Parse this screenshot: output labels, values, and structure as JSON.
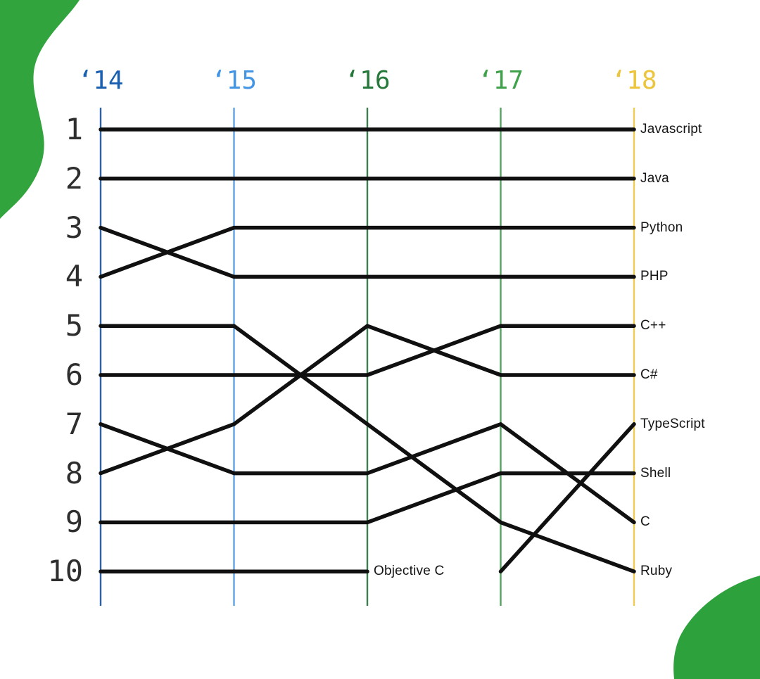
{
  "page": {
    "background_color": "#ffffff"
  },
  "decorations": {
    "top_left_blob_color": "#31a43d",
    "bottom_right_blob_color": "#2ca13c"
  },
  "chart_data": {
    "type": "line",
    "subtype": "bump-rank-chart",
    "title": "",
    "x_labels": [
      "‘14",
      "‘15",
      "‘16",
      "‘17",
      "‘18"
    ],
    "x_label_colors": [
      "#1a5fb0",
      "#4495e4",
      "#26793b",
      "#3fa24a",
      "#edc53d"
    ],
    "axis_line_colors": [
      "#2f62a1",
      "#5ea3e6",
      "#3c7e4f",
      "#53a361",
      "#eecb52"
    ],
    "rank_labels": [
      "1",
      "2",
      "3",
      "4",
      "5",
      "6",
      "7",
      "8",
      "9",
      "10"
    ],
    "rank_label_color": "#2e2e2e",
    "series_color": "#101010",
    "label_color": "#151515",
    "ylim": [
      1,
      10
    ],
    "grid": "vertical-year-lines",
    "legend_position": "labels-at-line-ends",
    "series": [
      {
        "name": "Javascript",
        "slug": "javascript",
        "ranks": [
          1,
          1,
          1,
          1,
          1
        ]
      },
      {
        "name": "Java",
        "slug": "java",
        "ranks": [
          2,
          2,
          2,
          2,
          2
        ]
      },
      {
        "name": "Python",
        "slug": "python",
        "ranks": [
          4,
          3,
          3,
          3,
          3
        ]
      },
      {
        "name": "PHP",
        "slug": "php",
        "ranks": [
          3,
          4,
          4,
          4,
          4
        ]
      },
      {
        "name": "C++",
        "slug": "cpp",
        "ranks": [
          6,
          6,
          6,
          5,
          5
        ]
      },
      {
        "name": "C#",
        "slug": "csharp",
        "ranks": [
          8,
          7,
          5,
          6,
          6
        ]
      },
      {
        "name": "TypeScript",
        "slug": "typescript",
        "ranks": [
          null,
          null,
          null,
          10,
          7
        ]
      },
      {
        "name": "Shell",
        "slug": "shell",
        "ranks": [
          9,
          9,
          9,
          8,
          8
        ]
      },
      {
        "name": "C",
        "slug": "c",
        "ranks": [
          7,
          8,
          8,
          7,
          9
        ]
      },
      {
        "name": "Ruby",
        "slug": "ruby",
        "ranks": [
          5,
          5,
          7,
          9,
          10
        ]
      },
      {
        "name": "Objective C",
        "slug": "objective-c",
        "ranks": [
          10,
          10,
          10,
          null,
          null
        ]
      }
    ]
  }
}
